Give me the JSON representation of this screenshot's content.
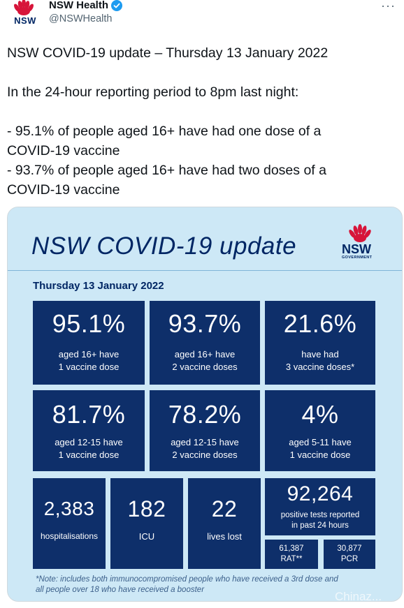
{
  "header": {
    "avatar_label": "NSW",
    "display_name": "NSW Health",
    "handle": "@NSWHealth",
    "more_label": "···"
  },
  "tweet": {
    "line1": "NSW COVID-19 update – Thursday 13 January 2022",
    "line2": "In the 24-hour reporting period to 8pm last night:",
    "line3": "- 95.1% of people aged 16+ have had one dose of a",
    "line4": "COVID-19 vaccine",
    "line5": "- 93.7% of people aged 16+ have had two doses of a",
    "line6": "COVID-19 vaccine"
  },
  "infographic": {
    "title": "NSW COVID-19 update",
    "logo_word": "NSW",
    "logo_gov": "GOVERNMENT",
    "date": "Thursday 13 January 2022",
    "stats": [
      {
        "value": "95.1%",
        "label1": "aged 16+ have",
        "label2": "1 vaccine dose"
      },
      {
        "value": "93.7%",
        "label1": "aged 16+ have",
        "label2": "2 vaccine doses"
      },
      {
        "value": "21.6%",
        "label1": "have had",
        "label2": "3 vaccine doses*"
      },
      {
        "value": "81.7%",
        "label1": "aged 12-15 have",
        "label2": "1 vaccine dose"
      },
      {
        "value": "78.2%",
        "label1": "aged 12-15 have",
        "label2": "2 vaccine doses"
      },
      {
        "value": "4%",
        "label1": "aged 5-11 have",
        "label2": "1 vaccine dose"
      }
    ],
    "hospitalisations": {
      "value": "2,383",
      "label": "hospitalisations"
    },
    "icu": {
      "value": "182",
      "label": "ICU"
    },
    "deaths": {
      "value": "22",
      "label": "lives lost"
    },
    "tests": {
      "value": "92,264",
      "label1": "positive tests reported",
      "label2": "in past 24 hours"
    },
    "rat": {
      "value": "61,387",
      "label": "RAT**"
    },
    "pcr": {
      "value": "30,877",
      "label": "PCR"
    },
    "note_line1": "*Note: includes both immunocompromised people who have received a 3rd dose and",
    "note_line2": "all people over 18 who have received a booster",
    "watermark": "Chinaz..."
  },
  "colors": {
    "navy": "#0e2f6a",
    "banner_bg": "#cde8f6",
    "waratah_red": "#d7153a",
    "verified_blue": "#1d9bf0"
  }
}
